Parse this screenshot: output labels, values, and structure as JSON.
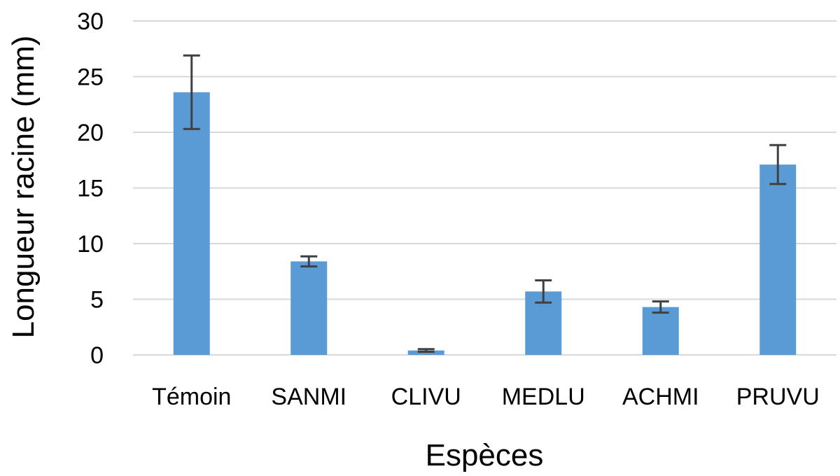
{
  "chart_data": {
    "type": "bar",
    "title": "",
    "xlabel": "Espèces",
    "ylabel": "Longueur racine (mm)",
    "categories": [
      "Témoin",
      "SANMI",
      "CLIVU",
      "MEDLU",
      "ACHMI",
      "PRUVU"
    ],
    "values": [
      23.6,
      8.4,
      0.4,
      5.7,
      4.3,
      17.1
    ],
    "error": [
      3.3,
      0.45,
      0.12,
      1.0,
      0.5,
      1.75
    ],
    "ylim": [
      0,
      30
    ],
    "yticks": [
      0,
      5,
      10,
      15,
      20,
      25,
      30
    ],
    "grid": true,
    "legend": "none",
    "colors": {
      "bar": "#5B9BD5",
      "error": "#404040",
      "grid": "#D9D9D9"
    }
  }
}
